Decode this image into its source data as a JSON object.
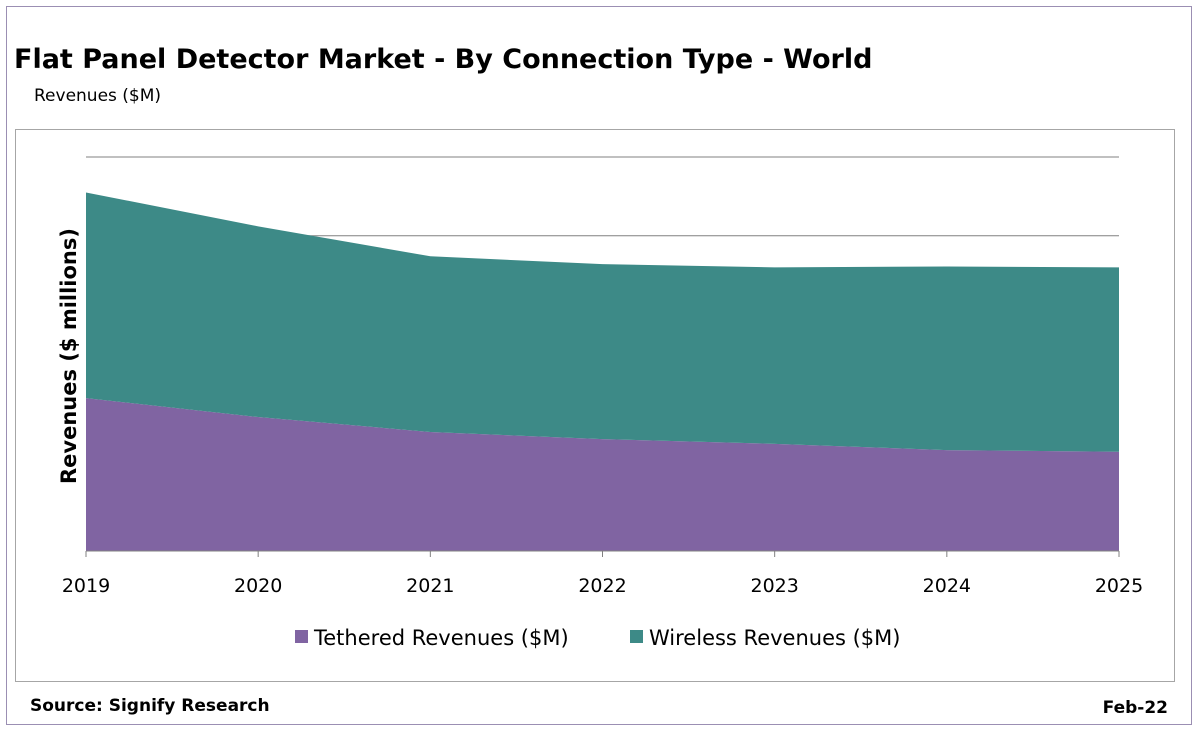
{
  "header": {
    "title": "Flat Panel Detector Market - By Connection Type - World",
    "subtitle": "Revenues ($M)"
  },
  "footer": {
    "source": "Source: Signify Research",
    "date": "Feb-22"
  },
  "colors": {
    "tethered": "#8064a2",
    "wireless": "#3d8a87",
    "grid": "#808080",
    "axis": "#808080"
  },
  "chart_data": {
    "type": "area",
    "stacked": true,
    "ylabel": "Revenues ($ millions)",
    "xlabel": "",
    "categories": [
      "2019",
      "2020",
      "2021",
      "2022",
      "2023",
      "2024",
      "2025"
    ],
    "ylim": [
      0,
      2500
    ],
    "grid": true,
    "legend_position": "bottom",
    "series": [
      {
        "name": "Tethered Revenues ($M)",
        "values": [
          970,
          850,
          755,
          710,
          680,
          640,
          630
        ]
      },
      {
        "name": "Wireless Revenues ($M)",
        "values": [
          1305,
          1210,
          1115,
          1110,
          1120,
          1165,
          1170
        ]
      }
    ]
  }
}
